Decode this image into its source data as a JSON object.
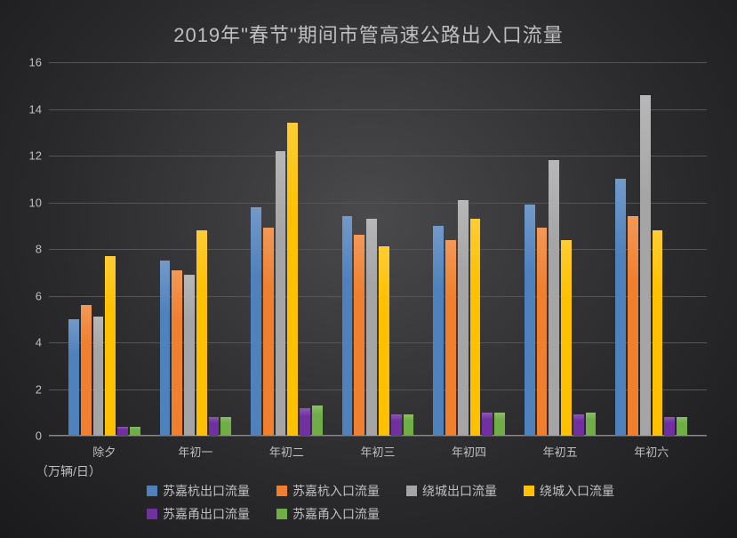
{
  "chart": {
    "type": "bar",
    "title": "2019年\"春节\"期间市管高速公路出入口流量",
    "title_fontsize": 22,
    "title_color": "#bfbfbf",
    "unit_label": "（万辆/日）",
    "background": "radial-dark-gray",
    "ylim": [
      0,
      16
    ],
    "ytick_step": 2,
    "yticks": [
      0,
      2,
      4,
      6,
      8,
      10,
      12,
      14,
      16
    ],
    "grid_color": "#555555",
    "text_color": "#bfbfbf",
    "label_fontsize": 13,
    "categories": [
      "除夕",
      "年初一",
      "年初二",
      "年初三",
      "年初四",
      "年初五",
      "年初六"
    ],
    "series": [
      {
        "name": "苏嘉杭出口流量",
        "color": "#4f81bd",
        "values": [
          5.0,
          7.5,
          9.8,
          9.4,
          9.0,
          9.9,
          11.0
        ]
      },
      {
        "name": "苏嘉杭入口流量",
        "color": "#f07f2e",
        "values": [
          5.6,
          7.1,
          8.9,
          8.6,
          8.4,
          8.9,
          9.4
        ]
      },
      {
        "name": "绕城出口流量",
        "color": "#a5a5a5",
        "values": [
          5.1,
          6.9,
          12.2,
          9.3,
          10.1,
          11.8,
          14.6
        ]
      },
      {
        "name": "绕城入口流量",
        "color": "#ffc000",
        "values": [
          7.7,
          8.8,
          13.4,
          8.1,
          9.3,
          8.4,
          8.8
        ]
      },
      {
        "name": "苏嘉甬出口流量",
        "color": "#7030a0",
        "values": [
          0.4,
          0.8,
          1.2,
          0.9,
          1.0,
          0.9,
          0.8
        ]
      },
      {
        "name": "苏嘉甬入口流量",
        "color": "#70ad47",
        "values": [
          0.4,
          0.8,
          1.3,
          0.9,
          1.0,
          1.0,
          0.8
        ]
      }
    ],
    "bar_gap_within_group": 2,
    "group_gap": 22
  }
}
